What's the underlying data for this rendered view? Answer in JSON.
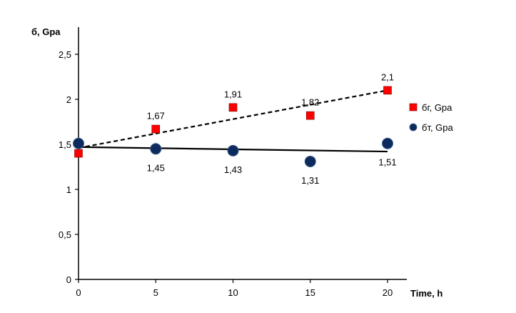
{
  "chart_data": {
    "type": "scatter",
    "ylabel": "б, Gpa",
    "xlabel": "Time, h",
    "xlim": [
      0,
      20
    ],
    "ylim": [
      0,
      2.9
    ],
    "x_ticks": [
      "0",
      "5",
      "10",
      "15",
      "20"
    ],
    "y_ticks": [
      "0",
      "0,5",
      "1",
      "1,5",
      "2",
      "2,5"
    ],
    "grid": false,
    "legend_position": "right",
    "series": [
      {
        "name": "бг, Gpa",
        "marker": "square",
        "color": "#ff0000",
        "x": [
          0,
          5,
          10,
          15,
          20
        ],
        "y": [
          1.4,
          1.67,
          1.91,
          1.82,
          2.1
        ],
        "labels": [
          "",
          "1,67",
          "1,91",
          "1,82",
          "2,1"
        ],
        "label_position": "above",
        "trendline": {
          "style": "dashed",
          "from": [
            0,
            1.46
          ],
          "to": [
            20,
            2.1
          ]
        }
      },
      {
        "name": "бт, Gpa",
        "marker": "circle",
        "color": "#0d2a5c",
        "x": [
          0,
          5,
          10,
          15,
          20
        ],
        "y": [
          1.51,
          1.45,
          1.43,
          1.31,
          1.51
        ],
        "labels": [
          "",
          "1,45",
          "1,43",
          "1,31",
          "1,51"
        ],
        "label_position": "below",
        "trendline": {
          "style": "solid",
          "from": [
            0,
            1.47
          ],
          "to": [
            20,
            1.42
          ]
        }
      }
    ]
  }
}
